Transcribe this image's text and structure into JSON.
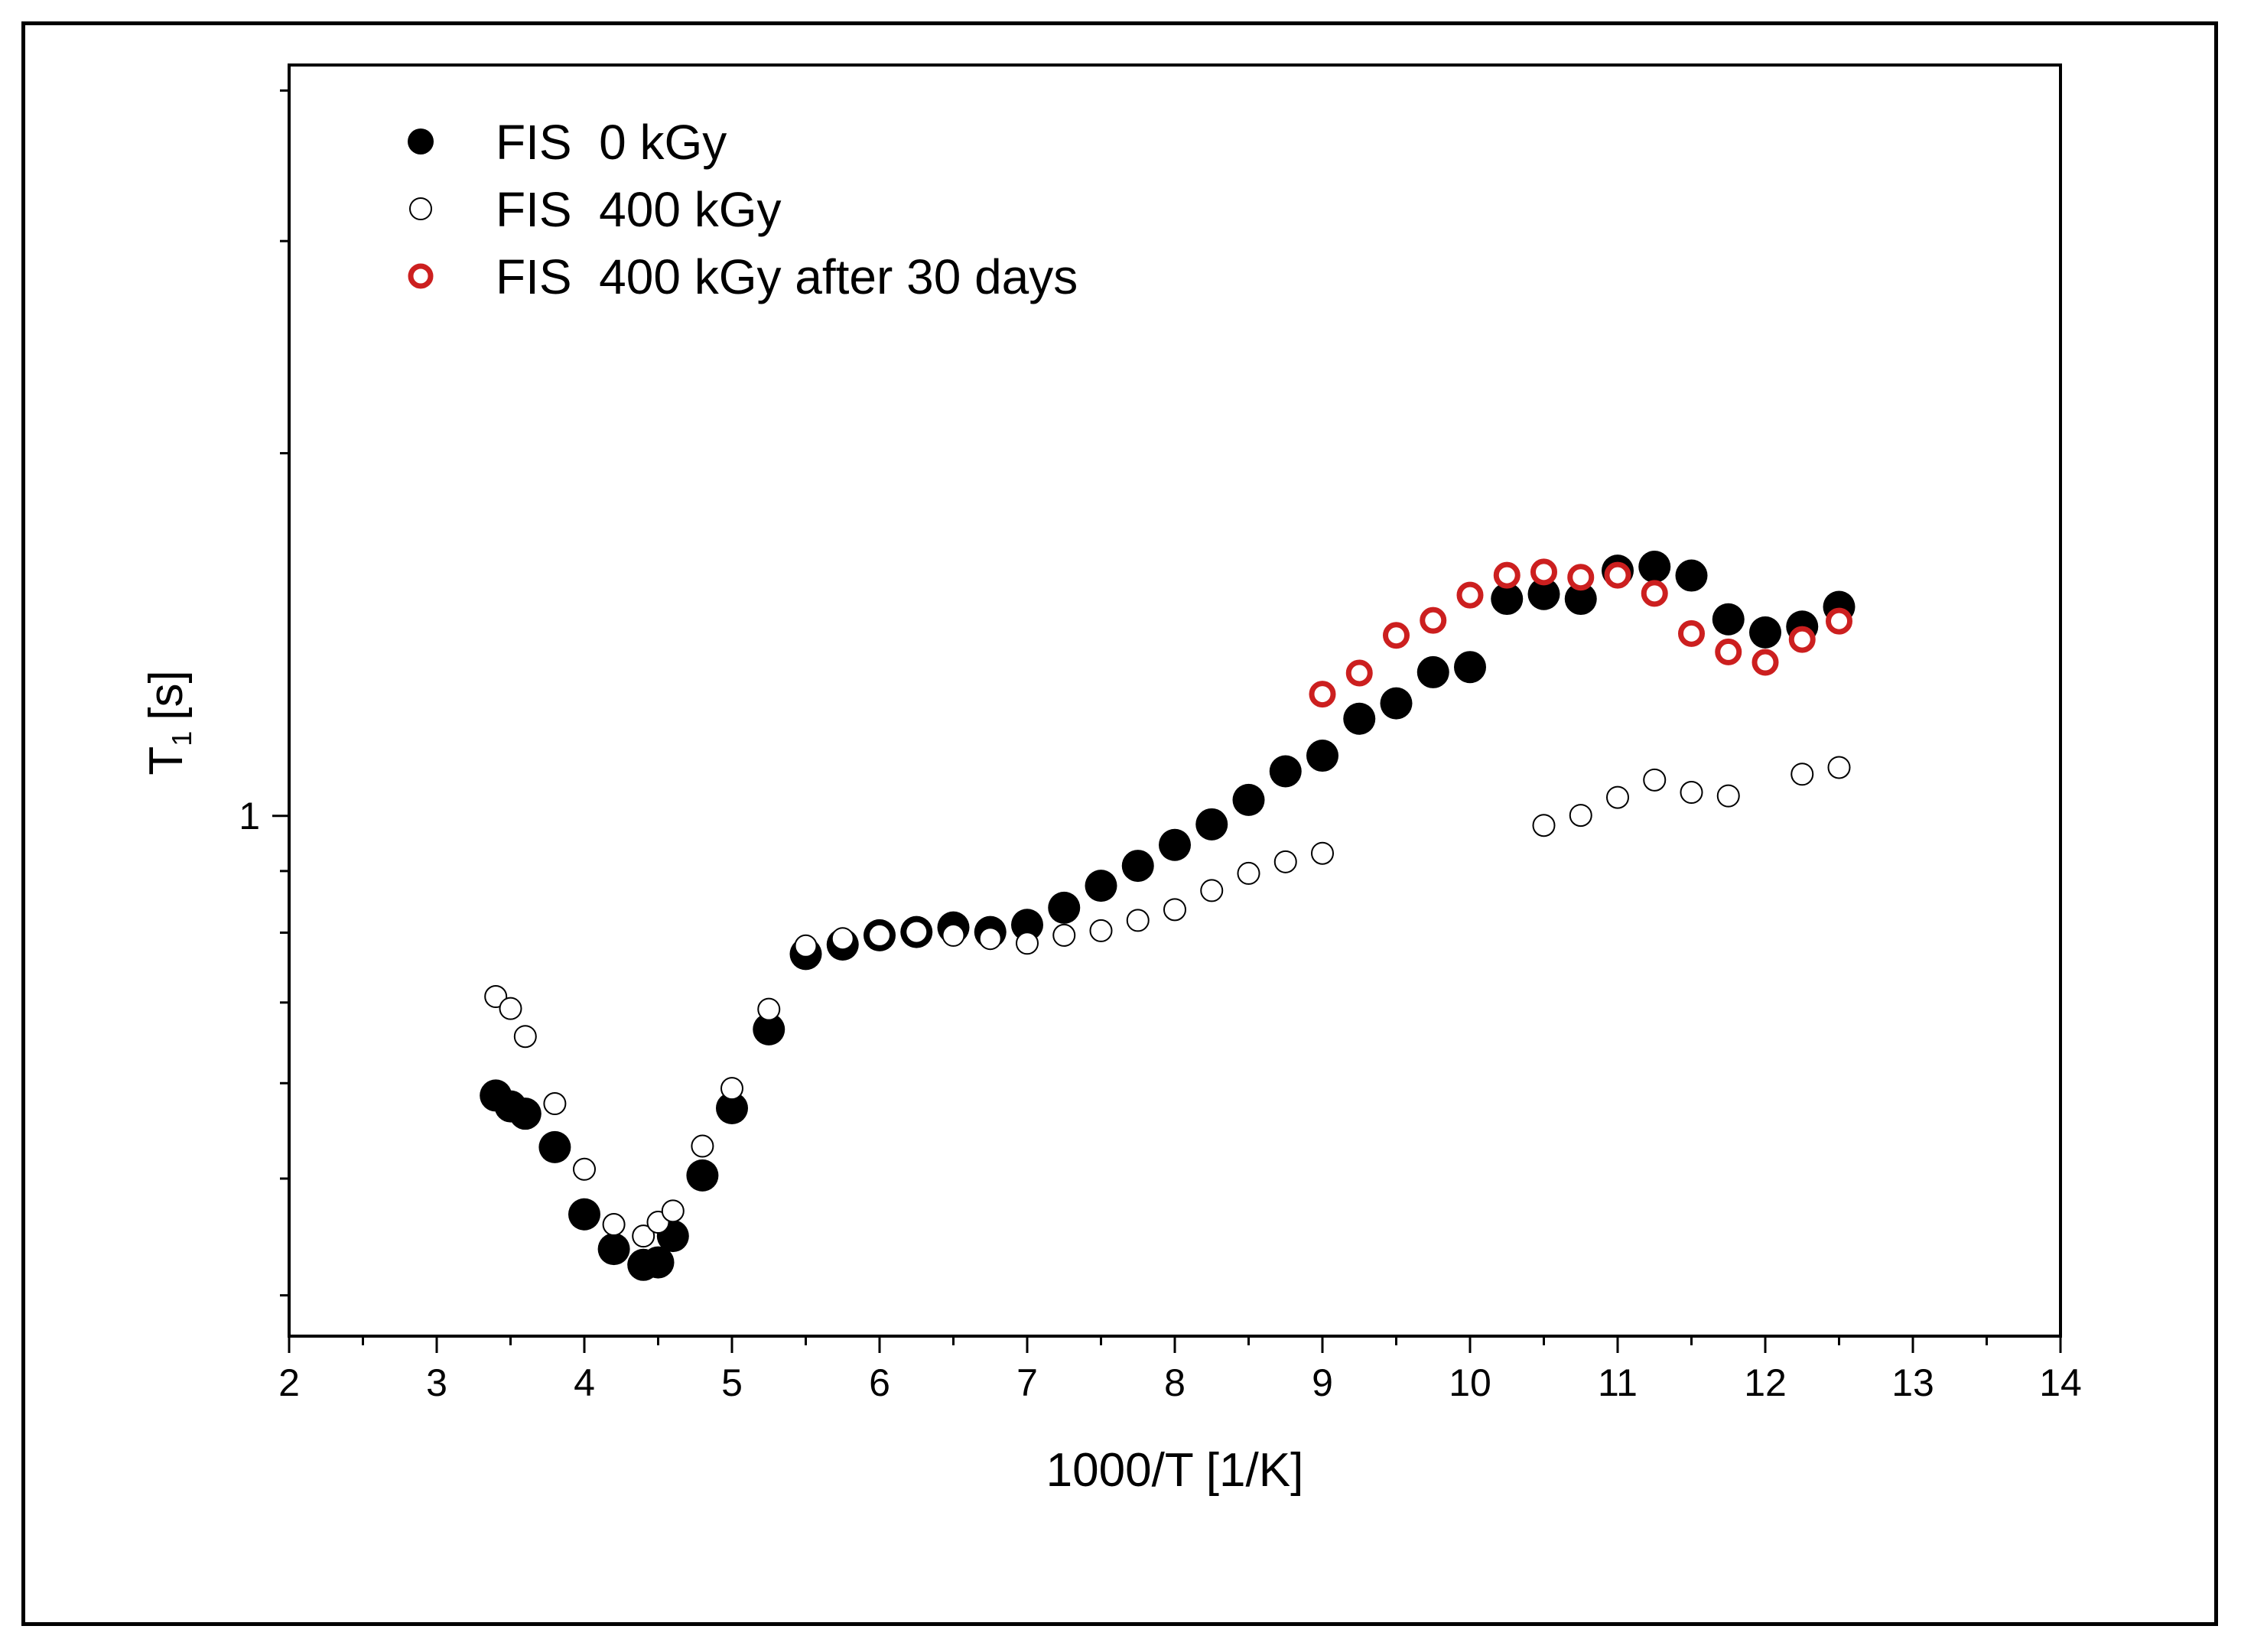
{
  "chart_data": {
    "type": "scatter",
    "title": "",
    "xlabel": "1000/T [1/K]",
    "ylabel_main": "T",
    "ylabel_sub": "1",
    "ylabel_unit": "[s]",
    "xlim": [
      2,
      14
    ],
    "ylim": [
      0.37,
      4.2
    ],
    "yscale": "log",
    "grid": false,
    "legend_position": "top-left",
    "x_ticks": [
      2,
      3,
      4,
      5,
      6,
      7,
      8,
      9,
      10,
      11,
      12,
      13,
      14
    ],
    "x_tick_labels": [
      "2",
      "3",
      "4",
      "5",
      "6",
      "7",
      "8",
      "9",
      "10",
      "11",
      "12",
      "13",
      "14"
    ],
    "y_ticks": [
      1
    ],
    "y_tick_labels": [
      "1"
    ],
    "y_minor_ticks": [
      0.4,
      0.5,
      0.6,
      0.7,
      0.8,
      0.9,
      2,
      3,
      4
    ],
    "series": [
      {
        "name": "FIS  0 kGy",
        "marker": "filled-circle",
        "color": "#000000",
        "x": [
          3.4,
          3.5,
          3.6,
          3.8,
          4.0,
          4.2,
          4.4,
          4.5,
          4.6,
          4.8,
          5.0,
          5.25,
          5.5,
          5.75,
          6.0,
          6.25,
          6.5,
          6.75,
          7.0,
          7.25,
          7.5,
          7.75,
          8.0,
          8.25,
          8.5,
          8.75,
          9.0,
          9.25,
          9.5,
          9.75,
          10.0,
          10.25,
          10.5,
          10.75,
          11.0,
          11.25,
          11.5,
          11.75,
          12.0,
          12.25,
          12.5
        ],
        "y": [
          0.586,
          0.574,
          0.566,
          0.531,
          0.467,
          0.437,
          0.424,
          0.426,
          0.448,
          0.503,
          0.572,
          0.665,
          0.768,
          0.782,
          0.796,
          0.801,
          0.808,
          0.801,
          0.812,
          0.839,
          0.875,
          0.909,
          0.946,
          0.984,
          1.031,
          1.089,
          1.122,
          1.204,
          1.24,
          1.316,
          1.329,
          1.514,
          1.528,
          1.514,
          1.598,
          1.61,
          1.583,
          1.456,
          1.42,
          1.436,
          1.491
        ]
      },
      {
        "name": "FIS  400 kGy",
        "marker": "open-circle",
        "color": "#000000",
        "x": [
          3.4,
          3.5,
          3.6,
          3.8,
          4.0,
          4.2,
          4.4,
          4.5,
          4.6,
          4.8,
          5.0,
          5.25,
          5.5,
          5.75,
          6.0,
          6.25,
          6.5,
          6.75,
          7.0,
          7.25,
          7.5,
          7.75,
          8.0,
          8.25,
          8.5,
          8.75,
          9.0,
          10.5,
          10.75,
          11.0,
          11.25,
          11.5,
          11.75,
          12.25,
          12.5
        ],
        "y": [
          0.708,
          0.692,
          0.656,
          0.577,
          0.509,
          0.458,
          0.448,
          0.46,
          0.47,
          0.532,
          0.594,
          0.691,
          0.78,
          0.791,
          0.796,
          0.801,
          0.796,
          0.791,
          0.784,
          0.796,
          0.803,
          0.819,
          0.836,
          0.867,
          0.896,
          0.916,
          0.931,
          0.982,
          1.001,
          1.036,
          1.071,
          1.046,
          1.039,
          1.083,
          1.097
        ]
      },
      {
        "name": "FIS  400 kGy after 30 days",
        "marker": "open-circle",
        "color": "#cc1f1f",
        "x": [
          9.0,
          9.25,
          9.5,
          9.75,
          10.0,
          10.25,
          10.5,
          10.75,
          11.0,
          11.25,
          11.5,
          11.75,
          12.0,
          12.25,
          12.5
        ],
        "y": [
          1.262,
          1.314,
          1.412,
          1.453,
          1.525,
          1.584,
          1.594,
          1.578,
          1.584,
          1.53,
          1.417,
          1.368,
          1.341,
          1.401,
          1.451
        ]
      }
    ]
  }
}
